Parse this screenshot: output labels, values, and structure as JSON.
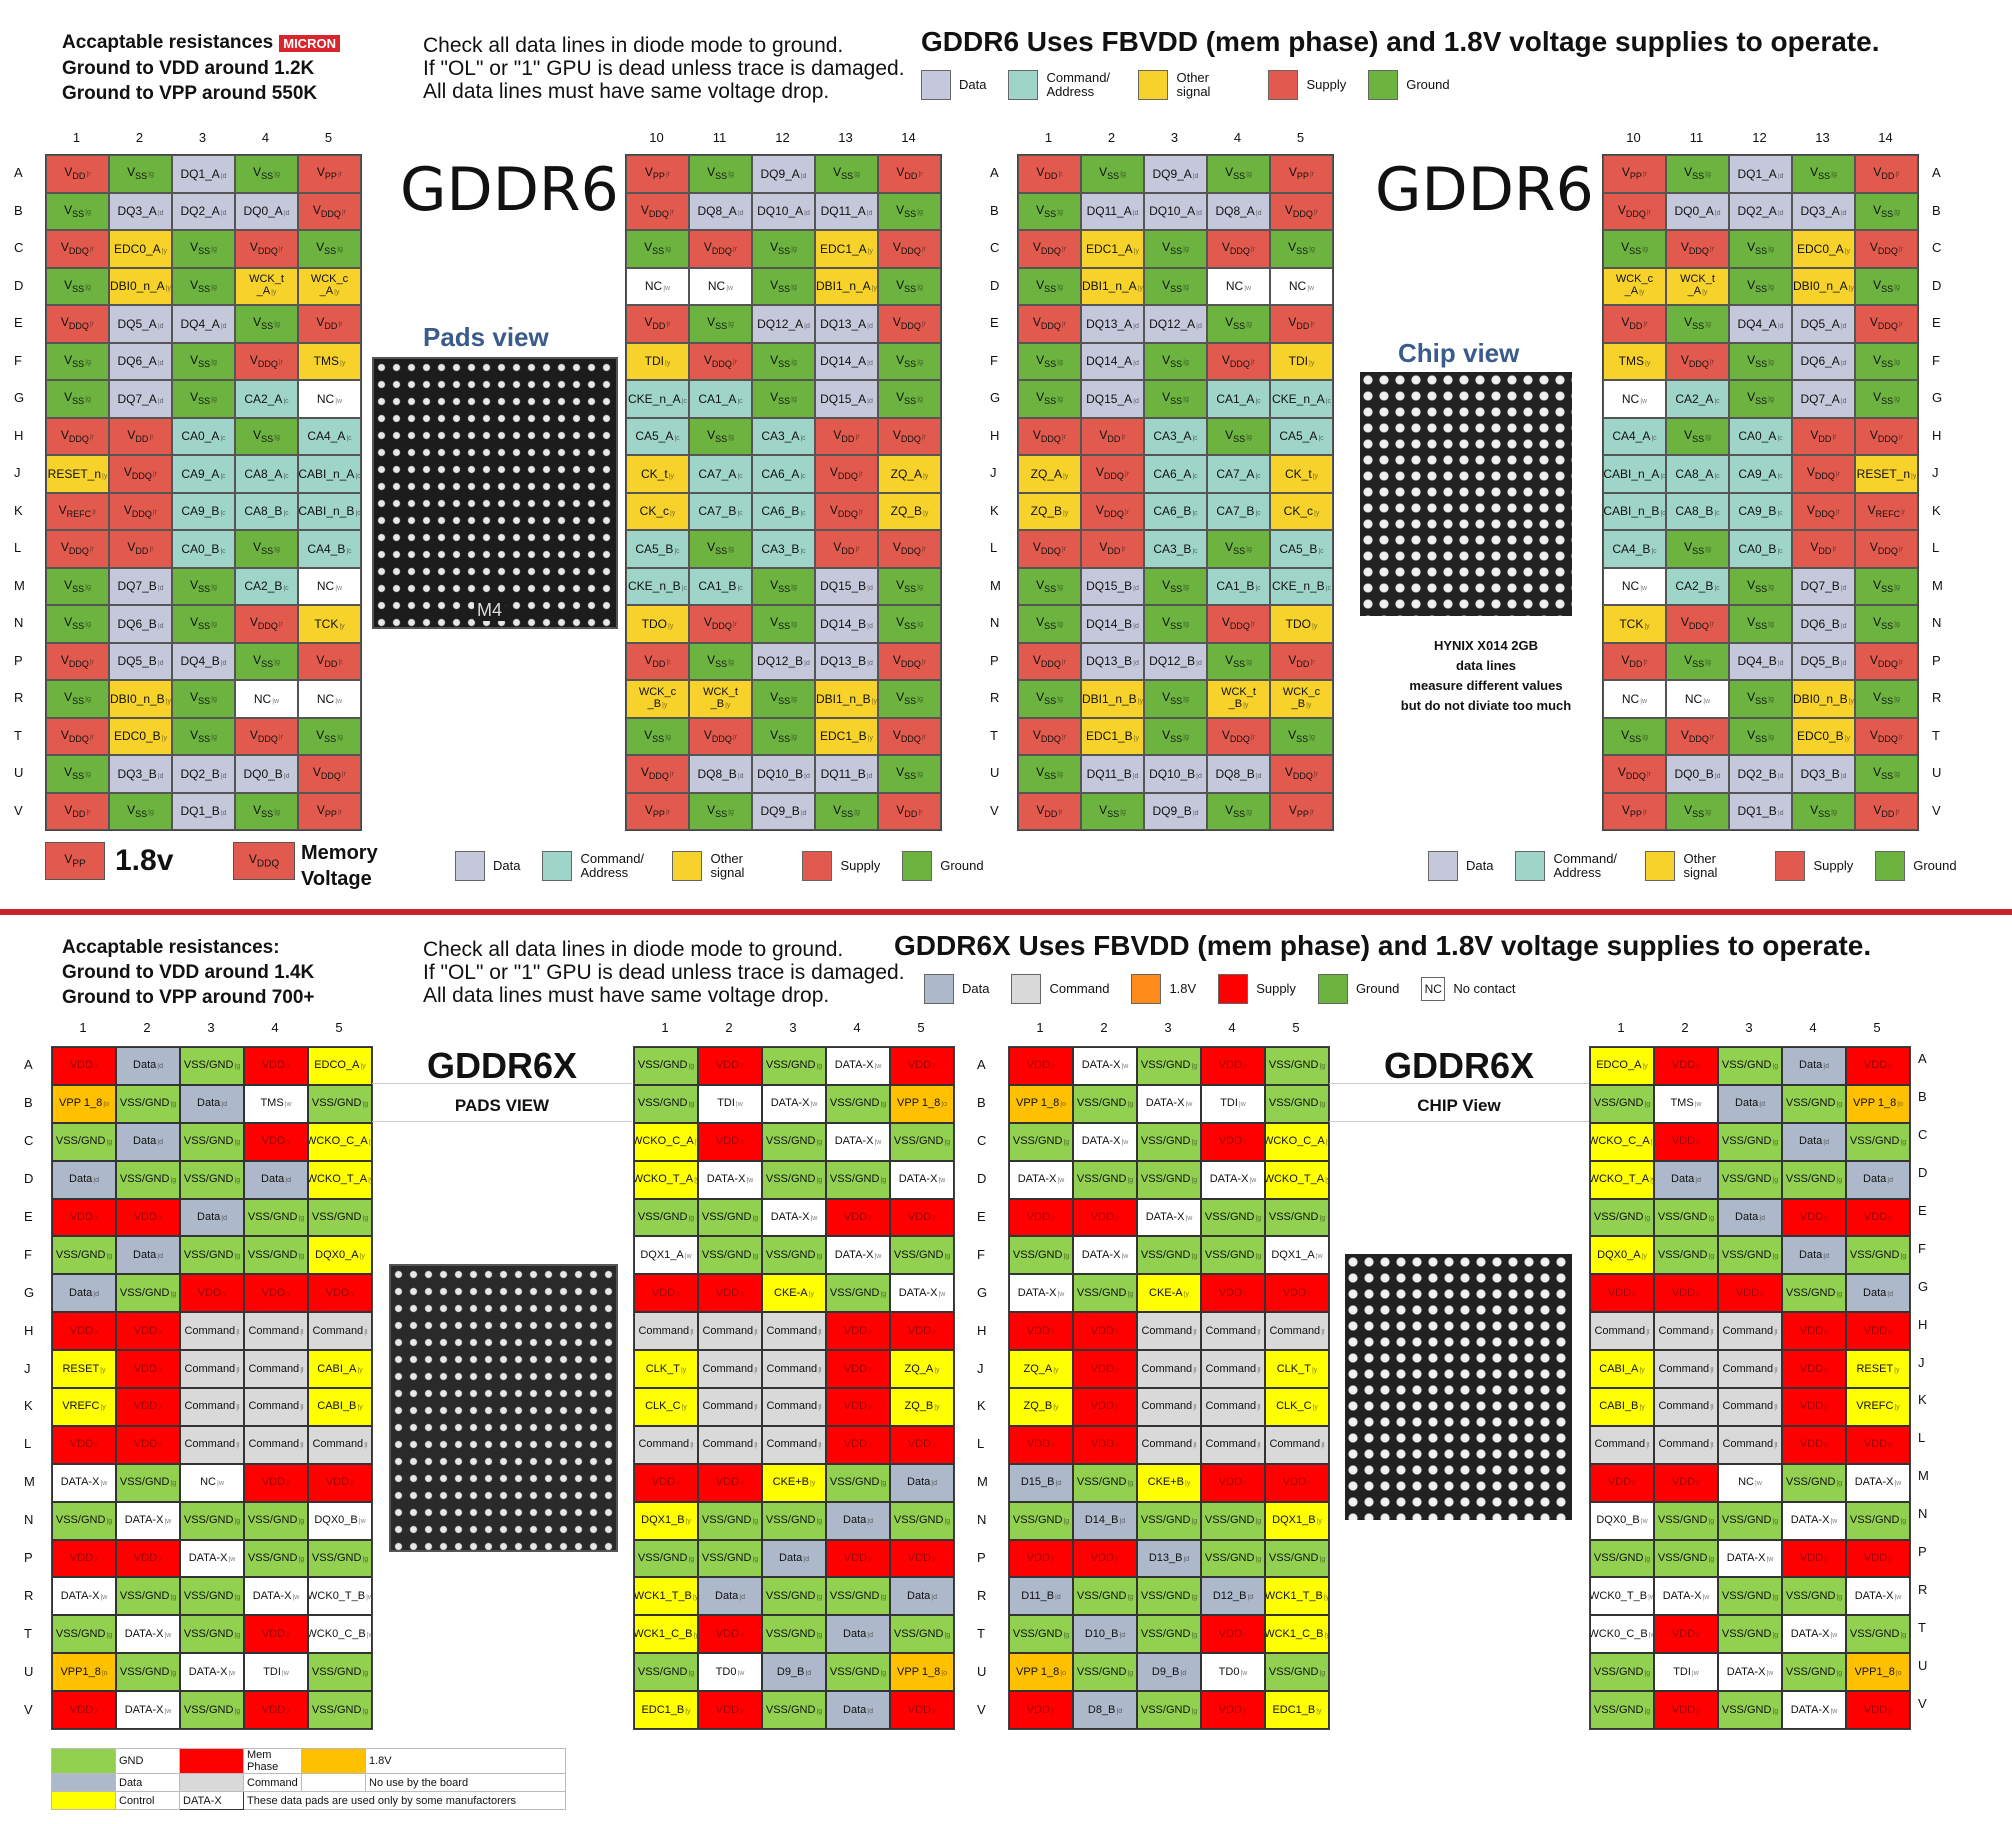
{
  "gddr6": {
    "notes": {
      "line1": "Accaptable resistances",
      "badge": "MICRON",
      "line2": "Ground to VDD around 1.2K",
      "line3": "Ground to VPP around 550K"
    },
    "check": [
      "Check all data lines in diode mode to ground.",
      "If \"OL\" or \"1\" GPU is dead unless trace is damaged.",
      "All data lines must have same voltage drop."
    ],
    "title": "GDDR6 Uses FBVDD (mem phase) and 1.8V voltage supplies to operate.",
    "legend": [
      {
        "label": "Data",
        "color": "#c5c8db"
      },
      {
        "label": "Command/ Address",
        "color": "#9fd4c9"
      },
      {
        "label": "Other signal",
        "color": "#f6d22a"
      },
      {
        "label": "Supply",
        "color": "#e25a4d"
      },
      {
        "label": "Ground",
        "color": "#6cb33f"
      }
    ],
    "cols_left": [
      "1",
      "2",
      "3",
      "4",
      "5"
    ],
    "cols_right": [
      "10",
      "11",
      "12",
      "13",
      "14"
    ],
    "rows": [
      "A",
      "B",
      "C",
      "D",
      "E",
      "F",
      "G",
      "H",
      "J",
      "K",
      "L",
      "M",
      "N",
      "P",
      "R",
      "T",
      "U",
      "V"
    ],
    "pads_view": {
      "chip_label": "GDDR6",
      "view_label": "Pads view",
      "photo_marking": "M4",
      "left_grid": [
        [
          "VDD|r",
          "VSS|g",
          "DQ1_A|d",
          "VSS|g",
          "VPP|r"
        ],
        [
          "VSS|g",
          "DQ3_A|d",
          "DQ2_A|d",
          "DQ0_A|d",
          "VDDQ|r"
        ],
        [
          "VDDQ|r",
          "EDC0_A|y",
          "VSS|g",
          "VDDQ|r",
          "VSS|g"
        ],
        [
          "VSS|g",
          "DBI0_n_A|y",
          "VSS|g",
          "WCK_t _A|y",
          "WCK_c _A|y"
        ],
        [
          "VDDQ|r",
          "DQ5_A|d",
          "DQ4_A|d",
          "VSS|g",
          "VDD|r"
        ],
        [
          "VSS|g",
          "DQ6_A|d",
          "VSS|g",
          "VDDQ|r",
          "TMS|y"
        ],
        [
          "VSS|g",
          "DQ7_A|d",
          "VSS|g",
          "CA2_A|c",
          "NC|w"
        ],
        [
          "VDDQ|r",
          "VDD|r",
          "CA0_A|c",
          "VSS|g",
          "CA4_A|c"
        ],
        [
          "RESET_n|y",
          "VDDQ|r",
          "CA9_A|c",
          "CA8_A|c",
          "CABI_n_A|c"
        ],
        [
          "VREFC|r",
          "VDDQ|r",
          "CA9_B|c",
          "CA8_B|c",
          "CABI_n_B|c"
        ],
        [
          "VDDQ|r",
          "VDD|r",
          "CA0_B|c",
          "VSS|g",
          "CA4_B|c"
        ],
        [
          "VSS|g",
          "DQ7_B|d",
          "VSS|g",
          "CA2_B|c",
          "NC|w"
        ],
        [
          "VSS|g",
          "DQ6_B|d",
          "VSS|g",
          "VDDQ|r",
          "TCK|y"
        ],
        [
          "VDDQ|r",
          "DQ5_B|d",
          "DQ4_B|d",
          "VSS|g",
          "VDD|r"
        ],
        [
          "VSS|g",
          "DBI0_n_B|y",
          "VSS|g",
          "NC|w",
          "NC|w"
        ],
        [
          "VDDQ|r",
          "EDC0_B|y",
          "VSS|g",
          "VDDQ|r",
          "VSS|g"
        ],
        [
          "VSS|g",
          "DQ3_B|d",
          "DQ2_B|d",
          "DQ0_B|d",
          "VDDQ|r"
        ],
        [
          "VDD|r",
          "VSS|g",
          "DQ1_B|d",
          "VSS|g",
          "VPP|r"
        ]
      ],
      "right_grid": [
        [
          "VPP|r",
          "VSS|g",
          "DQ9_A|d",
          "VSS|g",
          "VDD|r"
        ],
        [
          "VDDQ|r",
          "DQ8_A|d",
          "DQ10_A|d",
          "DQ11_A|d",
          "VSS|g"
        ],
        [
          "VSS|g",
          "VDDQ|r",
          "VSS|g",
          "EDC1_A|y",
          "VDDQ|r"
        ],
        [
          "NC|w",
          "NC|w",
          "VSS|g",
          "DBI1_n_A|y",
          "VSS|g"
        ],
        [
          "VDD|r",
          "VSS|g",
          "DQ12_A|d",
          "DQ13_A|d",
          "VDDQ|r"
        ],
        [
          "TDI|y",
          "VDDQ|r",
          "VSS|g",
          "DQ14_A|d",
          "VSS|g"
        ],
        [
          "CKE_n_A|c",
          "CA1_A|c",
          "VSS|g",
          "DQ15_A|d",
          "VSS|g"
        ],
        [
          "CA5_A|c",
          "VSS|g",
          "CA3_A|c",
          "VDD|r",
          "VDDQ|r"
        ],
        [
          "CK_t|y",
          "CA7_A|c",
          "CA6_A|c",
          "VDDQ|r",
          "ZQ_A|y"
        ],
        [
          "CK_c|y",
          "CA7_B|c",
          "CA6_B|c",
          "VDDQ|r",
          "ZQ_B|y"
        ],
        [
          "CA5_B|c",
          "VSS|g",
          "CA3_B|c",
          "VDD|r",
          "VDDQ|r"
        ],
        [
          "CKE_n_B|c",
          "CA1_B|c",
          "VSS|g",
          "DQ15_B|d",
          "VSS|g"
        ],
        [
          "TDO|y",
          "VDDQ|r",
          "VSS|g",
          "DQ14_B|d",
          "VSS|g"
        ],
        [
          "VDD|r",
          "VSS|g",
          "DQ12_B|d",
          "DQ13_B|d",
          "VDDQ|r"
        ],
        [
          "WCK_c _B|y",
          "WCK_t _B|y",
          "VSS|g",
          "DBI1_n_B|y",
          "VSS|g"
        ],
        [
          "VSS|g",
          "VDDQ|r",
          "VSS|g",
          "EDC1_B|y",
          "VDDQ|r"
        ],
        [
          "VDDQ|r",
          "DQ8_B|d",
          "DQ10_B|d",
          "DQ11_B|d",
          "VSS|g"
        ],
        [
          "VPP|r",
          "VSS|g",
          "DQ9_B|d",
          "VSS|g",
          "VDD|r"
        ]
      ]
    },
    "chip_view": {
      "chip_label": "GDDR6",
      "view_label": "Chip view",
      "note": [
        "HYNIX X014 2GB",
        "data lines",
        "measure different values",
        "but do not diviate too much"
      ]
    },
    "voltage_key": {
      "vpp": "VPP",
      "vpp_value": "1.8v",
      "vddq": "VDDQ",
      "vddq_label_1": "Memory",
      "vddq_label_2": "Voltage"
    }
  },
  "gddr6x": {
    "notes": {
      "line1": "Accaptable resistances:",
      "line2": "Ground to VDD around  1.4K",
      "line3": "Ground to VPP around  700+"
    },
    "check": [
      "Check all data lines in diode mode to ground.",
      "If \"OL\" or \"1\" GPU is dead unless trace is damaged.",
      "All data lines must have same voltage drop."
    ],
    "title": "GDDR6X  Uses FBVDD (mem phase) and 1.8V voltage supplies to operate.",
    "legend": [
      {
        "label": "Data",
        "color": "#adb9ca"
      },
      {
        "label": "Command",
        "color": "#d9d9d9"
      },
      {
        "label": "1.8V",
        "color": "#ff8c1a"
      },
      {
        "label": "Supply",
        "color": "#ff0000"
      },
      {
        "label": "Ground",
        "color": "#6cb33f"
      },
      {
        "label": "No contact",
        "color": "#ffffff",
        "box_text": "NC"
      }
    ],
    "cols": [
      "1",
      "2",
      "3",
      "4",
      "5"
    ],
    "rows": [
      "A",
      "B",
      "C",
      "D",
      "E",
      "F",
      "G",
      "H",
      "J",
      "K",
      "L",
      "M",
      "N",
      "P",
      "R",
      "T",
      "U",
      "V"
    ],
    "pads_view": {
      "chip_label": "GDDR6X",
      "view_label": "PADS VIEW",
      "left_grid": [
        [
          "VDD|r",
          "Data|d",
          "VSS/GND|g",
          "VDD|r",
          "EDCO_A|y"
        ],
        [
          "VPP 1_8|o",
          "VSS/GND|g",
          "Data|d",
          "TMS|w",
          "VSS/GND|g"
        ],
        [
          "VSS/GND|g",
          "Data|d",
          "VSS/GND|g",
          "VDD|r",
          "WCKO_C_A|y"
        ],
        [
          "Data|d",
          "VSS/GND|g",
          "VSS/GND|g",
          "Data|d",
          "WCKO_T_A|y"
        ],
        [
          "VDD|r",
          "VDD|r",
          "Data|d",
          "VSS/GND|g",
          "VSS/GND|g"
        ],
        [
          "VSS/GND|g",
          "Data|d",
          "VSS/GND|g",
          "VSS/GND|g",
          "DQX0_A|y"
        ],
        [
          "Data|d",
          "VSS/GND|g",
          "VDD|r",
          "VDD|r",
          "VDD|r"
        ],
        [
          "VDD|r",
          "VDD|r",
          "Command|l",
          "Command|l",
          "Command|l"
        ],
        [
          "RESET|y",
          "VDD|r",
          "Command|l",
          "Command|l",
          "CABI_A|y"
        ],
        [
          "VREFC|y",
          "VDD|r",
          "Command|l",
          "Command|l",
          "CABI_B|y"
        ],
        [
          "VDD|r",
          "VDD|r",
          "Command|l",
          "Command|l",
          "Command|l"
        ],
        [
          "DATA-X|w",
          "VSS/GND|g",
          "NC|w",
          "VDD|r",
          "VDD|r"
        ],
        [
          "VSS/GND|g",
          "DATA-X|w",
          "VSS/GND|g",
          "VSS/GND|g",
          "DQX0_B|w"
        ],
        [
          "VDD|r",
          "VDD|r",
          "DATA-X|w",
          "VSS/GND|g",
          "VSS/GND|g"
        ],
        [
          "DATA-X|w",
          "VSS/GND|g",
          "VSS/GND|g",
          "DATA-X|w",
          "WCK0_T_B|w"
        ],
        [
          "VSS/GND|g",
          "DATA-X|w",
          "VSS/GND|g",
          "VDD|r",
          "WCK0_C_B|w"
        ],
        [
          "VPP1_8|o",
          "VSS/GND|g",
          "DATA-X|w",
          "TDI|w",
          "VSS/GND|g"
        ],
        [
          "VDD|r",
          "DATA-X|w",
          "VSS/GND|g",
          "VDD|r",
          "VSS/GND|g"
        ]
      ],
      "right_grid": [
        [
          "VSS/GND|g",
          "VDD|r",
          "VSS/GND|g",
          "DATA-X|w",
          "VDD|r"
        ],
        [
          "VSS/GND|g",
          "TDI|w",
          "DATA-X|w",
          "VSS/GND|g",
          "VPP 1_8|o"
        ],
        [
          "WCKO_C_A|y",
          "VDD|r",
          "VSS/GND|g",
          "DATA-X|w",
          "VSS/GND|g"
        ],
        [
          "WCKO_T_A|y",
          "DATA-X|w",
          "VSS/GND|g",
          "VSS/GND|g",
          "DATA-X|w"
        ],
        [
          "VSS/GND|g",
          "VSS/GND|g",
          "DATA-X|w",
          "VDD|r",
          "VDD|r"
        ],
        [
          "DQX1_A|w",
          "VSS/GND|g",
          "VSS/GND|g",
          "DATA-X|w",
          "VSS/GND|g"
        ],
        [
          "VDD|r",
          "VDD|r",
          "CKE-A|y",
          "VSS/GND|g",
          "DATA-X|w"
        ],
        [
          "Command|l",
          "Command|l",
          "Command|l",
          "VDD|r",
          "VDD|r"
        ],
        [
          "CLK_T|y",
          "Command|l",
          "Command|l",
          "VDD|r",
          "ZQ_A|y"
        ],
        [
          "CLK_C|y",
          "Command|l",
          "Command|l",
          "VDD|r",
          "ZQ_B|y"
        ],
        [
          "Command|l",
          "Command|l",
          "Command|l",
          "VDD|r",
          "VDD|r"
        ],
        [
          "VDD|r",
          "VDD|r",
          "CKE+B|y",
          "VSS/GND|g",
          "Data|d"
        ],
        [
          "DQX1_B|y",
          "VSS/GND|g",
          "VSS/GND|g",
          "Data|d",
          "VSS/GND|g"
        ],
        [
          "VSS/GND|g",
          "VSS/GND|g",
          "Data|d",
          "VDD|r",
          "VDD|r"
        ],
        [
          "WCK1_T_B|y",
          "Data|d",
          "VSS/GND|g",
          "VSS/GND|g",
          "Data|d"
        ],
        [
          "WCK1_C_B|y",
          "VDD|r",
          "VSS/GND|g",
          "Data|d",
          "VSS/GND|g"
        ],
        [
          "VSS/GND|g",
          "TD0|w",
          "D9_B|d",
          "VSS/GND|g",
          "VPP 1_8|o"
        ],
        [
          "EDC1_B|y",
          "VDD|r",
          "VSS/GND|g",
          "Data|d",
          "VDD|r"
        ]
      ]
    },
    "chip_view": {
      "chip_label": "GDDR6X",
      "view_label": "CHIP View",
      "left_grid": [
        [
          "VDD|r",
          "DATA-X|w",
          "VSS/GND|g",
          "VDD|r",
          "VSS/GND|g"
        ],
        [
          "VPP 1_8|o",
          "VSS/GND|g",
          "DATA-X|w",
          "TDI|w",
          "VSS/GND|g"
        ],
        [
          "VSS/GND|g",
          "DATA-X|w",
          "VSS/GND|g",
          "VDD|r",
          "WCKO_C_A|y"
        ],
        [
          "DATA-X|w",
          "VSS/GND|g",
          "VSS/GND|g",
          "DATA-X|w",
          "WCKO_T_A|y"
        ],
        [
          "VDD|r",
          "VDD|r",
          "DATA-X|w",
          "VSS/GND|g",
          "VSS/GND|g"
        ],
        [
          "VSS/GND|g",
          "DATA-X|w",
          "VSS/GND|g",
          "VSS/GND|g",
          "DQX1_A|w"
        ],
        [
          "DATA-X|w",
          "VSS/GND|g",
          "CKE-A|y",
          "VDD|r",
          "VDD|r"
        ],
        [
          "VDD|r",
          "VDD|r",
          "Command|l",
          "Command|l",
          "Command|l"
        ],
        [
          "ZQ_A|y",
          "VDD|r",
          "Command|l",
          "Command|l",
          "CLK_T|y"
        ],
        [
          "ZQ_B|y",
          "VDD|r",
          "Command|l",
          "Command|l",
          "CLK_C|y"
        ],
        [
          "VDD|r",
          "VDD|r",
          "Command|l",
          "Command|l",
          "Command|l"
        ],
        [
          "D15_B|d",
          "VSS/GND|g",
          "CKE+B|y",
          "VDD|r",
          "VDD|r"
        ],
        [
          "VSS/GND|g",
          "D14_B|d",
          "VSS/GND|g",
          "VSS/GND|g",
          "DQX1_B|y"
        ],
        [
          "VDD|r",
          "VDD|r",
          "D13_B|d",
          "VSS/GND|g",
          "VSS/GND|g"
        ],
        [
          "D11_B|d",
          "VSS/GND|g",
          "VSS/GND|g",
          "D12_B|d",
          "WCK1_T_B|y"
        ],
        [
          "VSS/GND|g",
          "D10_B|d",
          "VSS/GND|g",
          "VDD|r",
          "WCK1_C_B|y"
        ],
        [
          "VPP 1_8|o",
          "VSS/GND|g",
          "D9_B|d",
          "TD0|w",
          "VSS/GND|g"
        ],
        [
          "VDD|r",
          "D8_B|d",
          "VSS/GND|g",
          "VDD|r",
          "EDC1_B|y"
        ]
      ]
    },
    "table_legend": {
      "gnd": "GND",
      "mem_phase": "Mem Phase",
      "v18": "1.8V",
      "data": "Data",
      "command": "Command",
      "no_use": "No use by the board",
      "control": "Control",
      "datax": "DATA-X",
      "datax_desc": "These data pads are used only by some manufactorers"
    }
  }
}
